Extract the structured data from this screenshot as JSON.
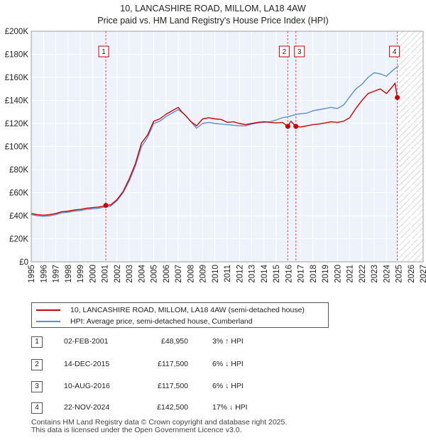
{
  "chart_data": {
    "type": "line",
    "title": "10, LANCASHIRE ROAD, MILLOM, LA18 4AW",
    "subtitle": "Price paid vs. HM Land Registry's House Price Index (HPI)",
    "xlim": [
      1995,
      2027
    ],
    "ylim": [
      0,
      200000
    ],
    "x_ticks": [
      1995,
      1996,
      1997,
      1998,
      1999,
      2000,
      2001,
      2002,
      2003,
      2004,
      2005,
      2006,
      2007,
      2008,
      2009,
      2010,
      2011,
      2012,
      2013,
      2014,
      2015,
      2016,
      2017,
      2018,
      2019,
      2020,
      2021,
      2022,
      2023,
      2024,
      2025,
      2026,
      2027
    ],
    "y_ticks": [
      {
        "value": 0,
        "label": "£0"
      },
      {
        "value": 20000,
        "label": "£20K"
      },
      {
        "value": 40000,
        "label": "£40K"
      },
      {
        "value": 60000,
        "label": "£60K"
      },
      {
        "value": 80000,
        "label": "£80K"
      },
      {
        "value": 100000,
        "label": "£100K"
      },
      {
        "value": 120000,
        "label": "£120K"
      },
      {
        "value": 140000,
        "label": "£140K"
      },
      {
        "value": 160000,
        "label": "£160K"
      },
      {
        "value": 180000,
        "label": "£180K"
      },
      {
        "value": 200000,
        "label": "£200K"
      }
    ],
    "data_end": 2024.95,
    "series": [
      {
        "name": "10, LANCASHIRE ROAD, MILLOM, LA18 4AW (semi-detached house)",
        "color": "#cc0000",
        "x": [
          1995,
          1995.5,
          1996,
          1996.5,
          1997,
          1997.5,
          1998,
          1998.5,
          1999,
          1999.5,
          2000,
          2000.5,
          2001.09,
          2001.5,
          2002,
          2002.5,
          2003,
          2003.5,
          2004,
          2004.5,
          2005,
          2005.5,
          2006,
          2006.5,
          2007,
          2007.3,
          2007.6,
          2008,
          2008.5,
          2009,
          2009.5,
          2010,
          2010.5,
          2011,
          2011.5,
          2012,
          2012.5,
          2013,
          2013.5,
          2014,
          2014.5,
          2015,
          2015.5,
          2015.95,
          2016.2,
          2016.61,
          2017,
          2017.5,
          2018,
          2018.5,
          2019,
          2019.5,
          2020,
          2020.5,
          2021,
          2021.5,
          2022,
          2022.5,
          2023,
          2023.5,
          2024,
          2024.5,
          2024.7,
          2024.89
        ],
        "y": [
          42000,
          41000,
          40500,
          41000,
          42000,
          43500,
          44000,
          45000,
          45500,
          46500,
          47000,
          47500,
          48950,
          49500,
          54000,
          61000,
          72000,
          85000,
          103000,
          110000,
          122000,
          124000,
          128000,
          131000,
          134000,
          130000,
          127000,
          122000,
          118000,
          124000,
          125000,
          124000,
          123500,
          121000,
          121500,
          120000,
          119000,
          120000,
          121000,
          121500,
          121000,
          120500,
          121000,
          117500,
          122000,
          117500,
          117000,
          118000,
          119000,
          119500,
          120500,
          121500,
          121000,
          122000,
          125000,
          133000,
          140000,
          146000,
          148000,
          150000,
          146000,
          152000,
          155000,
          142500
        ]
      },
      {
        "name": "HPI: Average price, semi-detached house, Cumberland",
        "color": "#5b8fd0",
        "x": [
          1995,
          1995.5,
          1996,
          1996.5,
          1997,
          1997.5,
          1998,
          1998.5,
          1999,
          1999.5,
          2000,
          2000.5,
          2001,
          2001.5,
          2002,
          2002.5,
          2003,
          2003.5,
          2004,
          2004.5,
          2005,
          2005.5,
          2006,
          2006.5,
          2007,
          2007.5,
          2008,
          2008.5,
          2009,
          2009.5,
          2010,
          2010.5,
          2011,
          2011.5,
          2012,
          2012.5,
          2013,
          2013.5,
          2014,
          2014.5,
          2015,
          2015.5,
          2016,
          2016.5,
          2017,
          2017.5,
          2018,
          2018.5,
          2019,
          2019.5,
          2020,
          2020.5,
          2021,
          2021.5,
          2022,
          2022.5,
          2023,
          2023.5,
          2024,
          2024.5,
          2025
        ],
        "y": [
          41000,
          40000,
          39500,
          40000,
          41000,
          42500,
          43000,
          44000,
          44500,
          45500,
          46000,
          46500,
          47500,
          48500,
          53000,
          60000,
          70000,
          83000,
          100000,
          108000,
          120000,
          122000,
          126000,
          129000,
          132000,
          128000,
          122000,
          116000,
          120000,
          121000,
          120000,
          119500,
          119000,
          118500,
          118000,
          118000,
          119500,
          120500,
          121000,
          121500,
          123000,
          125000,
          126000,
          127500,
          128500,
          129000,
          131000,
          132000,
          133000,
          134000,
          133000,
          136000,
          143000,
          150000,
          154000,
          160000,
          164000,
          163000,
          161000,
          166000,
          170000
        ]
      }
    ],
    "sales": [
      {
        "num": "1",
        "x": 2001.09,
        "date": "02-FEB-2001",
        "price": "£48,950",
        "price_value": 48950,
        "hpi": "3% ↑ HPI"
      },
      {
        "num": "2",
        "x": 2015.95,
        "date": "14-DEC-2015",
        "price": "£117,500",
        "price_value": 117500,
        "hpi": "6% ↓ HPI"
      },
      {
        "num": "3",
        "x": 2016.61,
        "date": "10-AUG-2016",
        "price": "£117,500",
        "price_value": 117500,
        "hpi": "6% ↓ HPI"
      },
      {
        "num": "4",
        "x": 2024.89,
        "date": "22-NOV-2024",
        "price": "£142,500",
        "price_value": 142500,
        "hpi": "17% ↓ HPI"
      }
    ]
  },
  "footer": {
    "line1": "Contains HM Land Registry data © Crown copyright and database right 2025.",
    "line2": "This data is licensed under the Open Government Licence v3.0."
  }
}
